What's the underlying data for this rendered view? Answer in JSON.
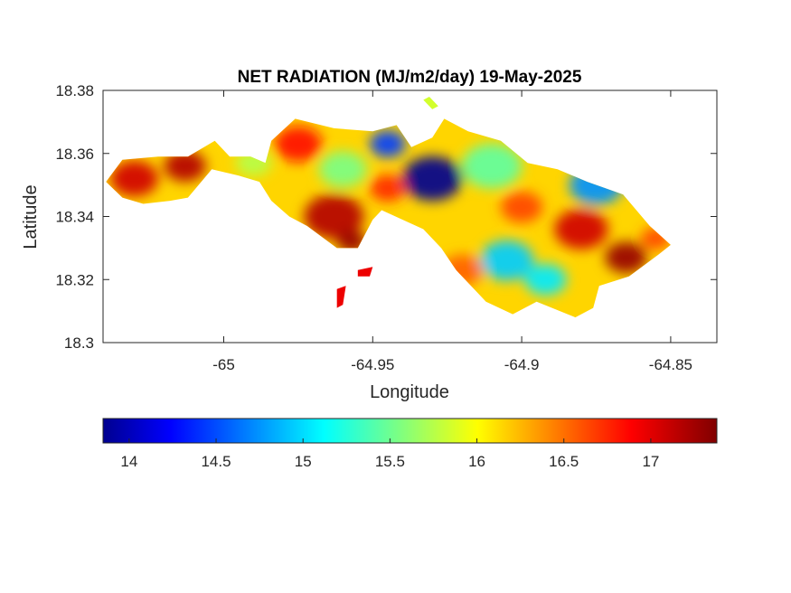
{
  "chart_data": {
    "type": "heatmap",
    "title": "NET RADIATION (MJ/m2/day) 19-May-2025",
    "xlabel": "Longitude",
    "ylabel": "Latitude",
    "xlim": [
      -65.0405,
      -64.8345
    ],
    "ylim": [
      18.3,
      18.38
    ],
    "xticks": [
      -65,
      -64.95,
      -64.9,
      -64.85
    ],
    "xtick_labels": [
      "-65",
      "-64.95",
      "-64.9",
      "-64.85"
    ],
    "yticks": [
      18.3,
      18.32,
      18.34,
      18.36,
      18.38
    ],
    "ytick_labels": [
      "18.3",
      "18.32",
      "18.34",
      "18.36",
      "18.38"
    ],
    "grid": false,
    "colormap": "jet",
    "colorbar": {
      "orientation": "horizontal",
      "location": "below",
      "range": [
        13.85,
        17.38
      ],
      "ticks": [
        14,
        14.5,
        15,
        15.5,
        16,
        16.5,
        17
      ],
      "tick_labels": [
        "14",
        "14.5",
        "15",
        "15.5",
        "16",
        "16.5",
        "17"
      ]
    },
    "land_outline": [
      [
        -65.0395,
        18.351
      ],
      [
        -65.034,
        18.358
      ],
      [
        -65.022,
        18.359
      ],
      [
        -65.012,
        18.359
      ],
      [
        -65.003,
        18.364
      ],
      [
        -64.998,
        18.359
      ],
      [
        -64.991,
        18.359
      ],
      [
        -64.986,
        18.357
      ],
      [
        -64.984,
        18.364
      ],
      [
        -64.976,
        18.371
      ],
      [
        -64.963,
        18.368
      ],
      [
        -64.95,
        18.367
      ],
      [
        -64.942,
        18.369
      ],
      [
        -64.937,
        18.362
      ],
      [
        -64.93,
        18.365
      ],
      [
        -64.926,
        18.371
      ],
      [
        -64.918,
        18.367
      ],
      [
        -64.907,
        18.364
      ],
      [
        -64.898,
        18.357
      ],
      [
        -64.888,
        18.355
      ],
      [
        -64.878,
        18.351
      ],
      [
        -64.866,
        18.347
      ],
      [
        -64.857,
        18.337
      ],
      [
        -64.85,
        18.331
      ],
      [
        -64.854,
        18.328
      ],
      [
        -64.864,
        18.321
      ],
      [
        -64.874,
        18.318
      ],
      [
        -64.876,
        18.311
      ],
      [
        -64.882,
        18.308
      ],
      [
        -64.895,
        18.313
      ],
      [
        -64.903,
        18.309
      ],
      [
        -64.912,
        18.313
      ],
      [
        -64.922,
        18.323
      ],
      [
        -64.927,
        18.33
      ],
      [
        -64.933,
        18.336
      ],
      [
        -64.947,
        18.342
      ],
      [
        -64.95,
        18.339
      ],
      [
        -64.955,
        18.33
      ],
      [
        -64.962,
        18.33
      ],
      [
        -64.972,
        18.337
      ],
      [
        -64.978,
        18.34
      ],
      [
        -64.984,
        18.345
      ],
      [
        -64.988,
        18.351
      ],
      [
        -64.995,
        18.353
      ],
      [
        -65.004,
        18.355
      ],
      [
        -65.012,
        18.346
      ],
      [
        -65.018,
        18.345
      ],
      [
        -65.027,
        18.344
      ],
      [
        -65.034,
        18.346
      ],
      [
        -65.0395,
        18.351
      ]
    ],
    "islets": [
      [
        [
          -64.955,
          18.323
        ],
        [
          -64.95,
          18.324
        ],
        [
          -64.951,
          18.321
        ],
        [
          -64.955,
          18.321
        ]
      ],
      [
        [
          -64.962,
          18.317
        ],
        [
          -64.959,
          18.318
        ],
        [
          -64.96,
          18.312
        ],
        [
          -64.962,
          18.311
        ]
      ],
      [
        [
          -64.933,
          18.377
        ],
        [
          -64.93,
          18.374
        ],
        [
          -64.928,
          18.375
        ],
        [
          -64.931,
          18.378
        ]
      ]
    ],
    "features": [
      {
        "lon": -64.93,
        "lat": 18.352,
        "value": 13.9,
        "radius": 0.01
      },
      {
        "lon": -64.945,
        "lat": 18.363,
        "value": 14.5,
        "radius": 0.006
      },
      {
        "lon": -64.875,
        "lat": 18.35,
        "value": 14.8,
        "radius": 0.009
      },
      {
        "lon": -64.905,
        "lat": 18.326,
        "value": 15.0,
        "radius": 0.009
      },
      {
        "lon": -64.892,
        "lat": 18.32,
        "value": 15.1,
        "radius": 0.007
      },
      {
        "lon": -64.91,
        "lat": 18.356,
        "value": 15.5,
        "radius": 0.01
      },
      {
        "lon": -64.96,
        "lat": 18.355,
        "value": 15.6,
        "radius": 0.008
      },
      {
        "lon": -64.99,
        "lat": 18.357,
        "value": 15.8,
        "radius": 0.006
      },
      {
        "lon": -64.963,
        "lat": 18.34,
        "value": 17.2,
        "radius": 0.01
      },
      {
        "lon": -64.957,
        "lat": 18.332,
        "value": 17.3,
        "radius": 0.005
      },
      {
        "lon": -65.03,
        "lat": 18.352,
        "value": 17.1,
        "radius": 0.008
      },
      {
        "lon": -65.013,
        "lat": 18.356,
        "value": 17.2,
        "radius": 0.007
      },
      {
        "lon": -64.975,
        "lat": 18.363,
        "value": 16.9,
        "radius": 0.008
      },
      {
        "lon": -64.88,
        "lat": 18.336,
        "value": 17.1,
        "radius": 0.009
      },
      {
        "lon": -64.865,
        "lat": 18.327,
        "value": 17.3,
        "radius": 0.007
      },
      {
        "lon": -64.92,
        "lat": 18.323,
        "value": 16.6,
        "radius": 0.007
      },
      {
        "lon": -64.9,
        "lat": 18.343,
        "value": 16.7,
        "radius": 0.007
      },
      {
        "lon": -64.945,
        "lat": 18.349,
        "value": 16.8,
        "radius": 0.006
      },
      {
        "lon": -64.855,
        "lat": 18.333,
        "value": 16.7,
        "radius": 0.005
      },
      {
        "lon": -64.953,
        "lat": 18.322,
        "value": 17.1,
        "radius": 0.004
      },
      {
        "lon": -64.96,
        "lat": 18.315,
        "value": 16.9,
        "radius": 0.004
      }
    ],
    "background_value": 16.2
  }
}
